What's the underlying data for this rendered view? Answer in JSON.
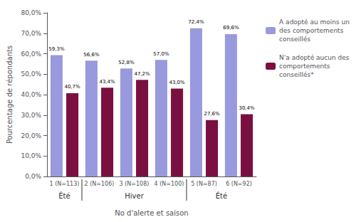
{
  "chart_data": {
    "type": "bar",
    "categories": [
      "1 (N=113)",
      "2 (N=106)",
      "3 (N=108)",
      "4 (N=100)",
      "5 (N=87)",
      "6 (N=92)"
    ],
    "series": [
      {
        "name": "A adopté au moins un\ndes comportements\nconseillés",
        "color": "#9999dd",
        "values": [
          59.3,
          56.6,
          52.8,
          57.0,
          72.4,
          69.6
        ],
        "value_labels": [
          "59,3%",
          "56,6%",
          "52,8%",
          "57,0%",
          "72,4%",
          "69,6%"
        ]
      },
      {
        "name": "N'a adopté aucun des\ncomportements\nconseillés*",
        "color": "#7a1040",
        "values": [
          40.7,
          43.4,
          47.2,
          43.0,
          27.6,
          30.4
        ],
        "value_labels": [
          "40,7%",
          "43,4%",
          "47,2%",
          "43,0%",
          "27,6%",
          "30,4%"
        ]
      }
    ],
    "xlabel": "No d'alerte et saison",
    "ylabel": "Pourcentage de répondants",
    "ylim": [
      0,
      80
    ],
    "yticks": [
      {
        "value": 0,
        "label": "0,0%"
      },
      {
        "value": 10,
        "label": "10,0%"
      },
      {
        "value": 20,
        "label": "20,0%"
      },
      {
        "value": 30,
        "label": "30,0%"
      },
      {
        "value": 40,
        "label": "40,0%"
      },
      {
        "value": 50,
        "label": "50,0%"
      },
      {
        "value": 60,
        "label": "60,0%"
      },
      {
        "value": 70,
        "label": "70,0%"
      },
      {
        "value": 80,
        "label": "80,0%"
      }
    ],
    "annotations": [
      {
        "text": "Été",
        "categories": [
          "1 (N=113)"
        ]
      },
      {
        "text": "Hiver",
        "categories": [
          "2 (N=106)",
          "3 (N=108)",
          "4 (N=100)"
        ]
      },
      {
        "text": "Été",
        "categories": [
          "5 (N=87)",
          "6 (N=92)"
        ]
      }
    ],
    "data_labels": true,
    "legend": "right",
    "grid": false
  }
}
